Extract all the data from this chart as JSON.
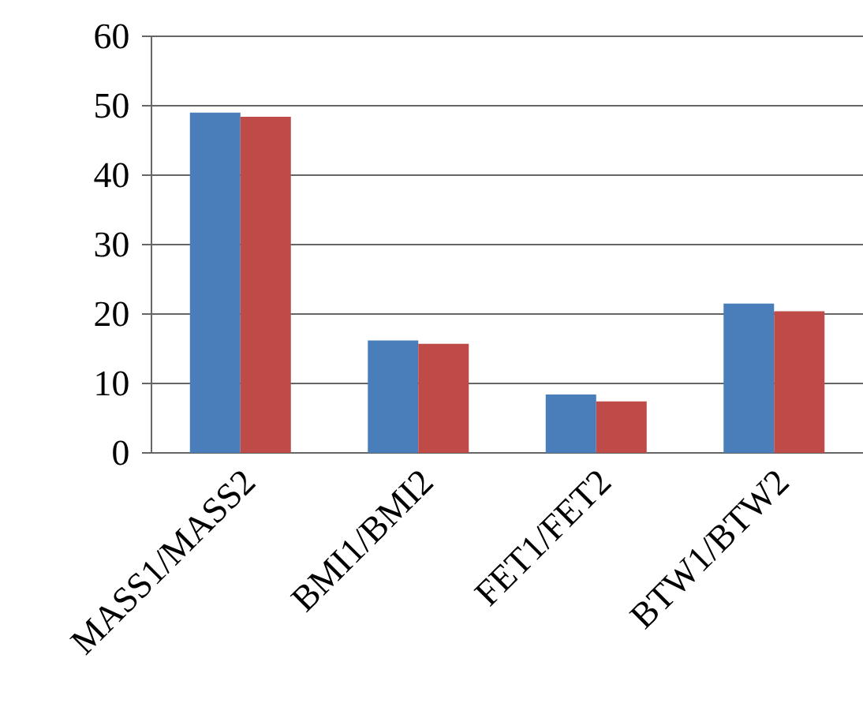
{
  "chart_data": {
    "type": "bar",
    "categories": [
      "MASS1/MASS2",
      "BMI1/BMI2",
      "FET1/FET2",
      "BTW1/BTW2"
    ],
    "series": [
      {
        "color": "#4a7ebb",
        "values": [
          49.0,
          16.2,
          8.4,
          21.5
        ]
      },
      {
        "color": "#be4b48",
        "values": [
          48.4,
          15.7,
          7.4,
          20.4
        ]
      }
    ],
    "ylim": [
      0,
      60
    ],
    "yticks": [
      0,
      10,
      20,
      30,
      40,
      50,
      60
    ],
    "grid": "y"
  }
}
